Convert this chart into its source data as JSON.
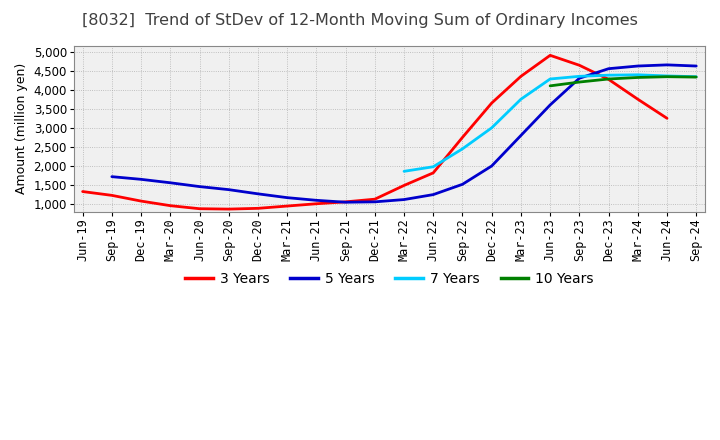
{
  "title": "[8032]  Trend of StDev of 12-Month Moving Sum of Ordinary Incomes",
  "ylabel": "Amount (million yen)",
  "ylim": [
    800,
    5150
  ],
  "yticks": [
    1000,
    1500,
    2000,
    2500,
    3000,
    3500,
    4000,
    4500,
    5000
  ],
  "bg_color": "#ffffff",
  "plot_bg_color": "#f0f0f0",
  "title_color": "#404040",
  "title_fontsize": 11.5,
  "axis_fontsize": 8.5,
  "legend_fontsize": 10,
  "series": {
    "3 Years": {
      "color": "#ff0000",
      "x": [
        0,
        1,
        2,
        3,
        4,
        5,
        6,
        7,
        8,
        9,
        10,
        11,
        12,
        13,
        14,
        15,
        16,
        17,
        18,
        19,
        20
      ],
      "values": [
        1330,
        1230,
        1080,
        960,
        880,
        870,
        890,
        950,
        1010,
        1060,
        1130,
        1490,
        1820,
        2750,
        3650,
        4350,
        4900,
        4640,
        4270,
        3750,
        3250
      ]
    },
    "5 Years": {
      "color": "#0000cc",
      "x": [
        1,
        2,
        3,
        4,
        5,
        6,
        7,
        8,
        9,
        10,
        11,
        12,
        13,
        14,
        15,
        16,
        17,
        18,
        19,
        20,
        21
      ],
      "values": [
        1720,
        1650,
        1560,
        1460,
        1380,
        1270,
        1170,
        1100,
        1050,
        1060,
        1120,
        1250,
        1520,
        2000,
        2800,
        3600,
        4300,
        4550,
        4620,
        4650,
        4620
      ]
    },
    "7 Years": {
      "color": "#00ccff",
      "x": [
        11,
        12,
        13,
        14,
        15,
        16,
        17,
        18,
        19,
        20,
        21
      ],
      "values": [
        1860,
        1980,
        2450,
        3000,
        3750,
        4280,
        4350,
        4380,
        4390,
        4360,
        4340
      ]
    },
    "10 Years": {
      "color": "#008000",
      "x": [
        16,
        17,
        18,
        19,
        20,
        21
      ],
      "values": [
        4100,
        4200,
        4280,
        4320,
        4340,
        4330
      ]
    }
  },
  "x_tick_labels": [
    "Jun-19",
    "Sep-19",
    "Dec-19",
    "Mar-20",
    "Jun-20",
    "Sep-20",
    "Dec-20",
    "Mar-21",
    "Jun-21",
    "Sep-21",
    "Dec-21",
    "Mar-22",
    "Jun-22",
    "Sep-22",
    "Dec-22",
    "Mar-23",
    "Jun-23",
    "Sep-23",
    "Dec-23",
    "Mar-24",
    "Jun-24",
    "Sep-24"
  ],
  "legend_entries": [
    "3 Years",
    "5 Years",
    "7 Years",
    "10 Years"
  ],
  "legend_colors": [
    "#ff0000",
    "#0000cc",
    "#00ccff",
    "#008000"
  ]
}
